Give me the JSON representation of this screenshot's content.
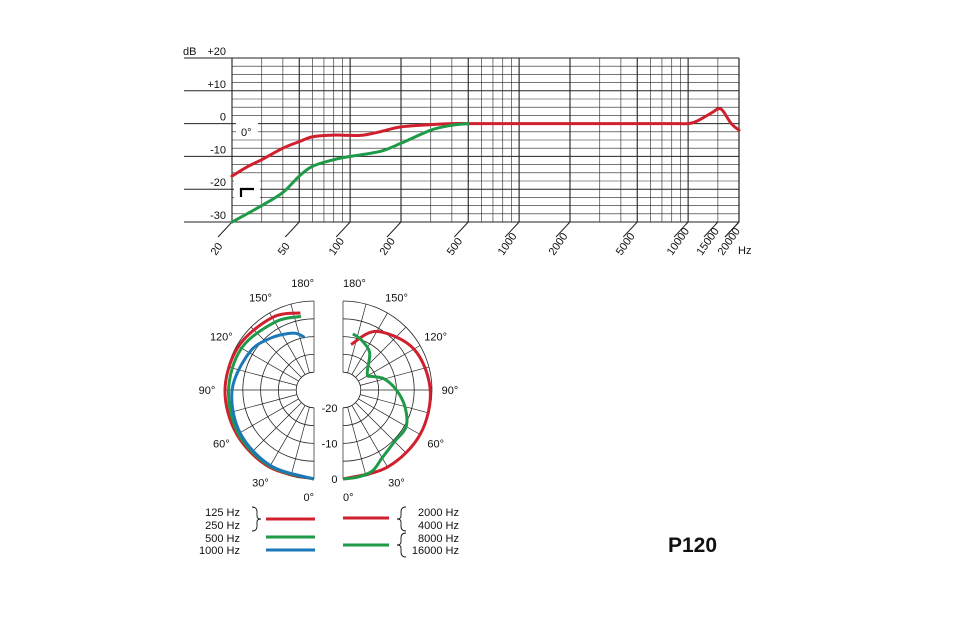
{
  "model": "P120",
  "colors": {
    "red": "#d0202e",
    "green": "#1f9a48",
    "blue": "#1d78b8",
    "grid": "#222222"
  },
  "chart_data": [
    {
      "type": "line",
      "x_scale": "log",
      "ylim": [
        -30,
        20
      ],
      "xlim": [
        20,
        20000
      ],
      "y_ticks": [
        {
          "value": 20,
          "label": "+20"
        },
        {
          "value": 10,
          "label": "+10"
        },
        {
          "value": 0,
          "label": "0"
        },
        {
          "value": -10,
          "label": "-10"
        },
        {
          "value": -20,
          "label": "-20"
        },
        {
          "value": -30,
          "label": "-30"
        }
      ],
      "y_unit": "dB",
      "x_ticks": [
        20,
        50,
        100,
        200,
        500,
        1000,
        2000,
        5000,
        10000,
        15000,
        20000
      ],
      "x_unit": "Hz",
      "annotations": [
        "0°"
      ],
      "series": [
        {
          "color": "red",
          "x": [
            20,
            25,
            30,
            40,
            50,
            60,
            80,
            100,
            120,
            150,
            200,
            300,
            400,
            500,
            700,
            1000,
            2000,
            5000,
            8000,
            10000,
            11000,
            12000,
            14000,
            15000,
            16000,
            18000,
            20000
          ],
          "y": [
            -16,
            -13,
            -11,
            -7.5,
            -5.5,
            -4,
            -3.5,
            -3.6,
            -3.5,
            -2.5,
            -1,
            -0.3,
            0,
            0,
            0,
            0,
            0,
            0,
            0,
            0,
            0.5,
            1.5,
            3.5,
            4.5,
            4,
            0,
            -2
          ]
        },
        {
          "color": "green",
          "x": [
            20,
            30,
            40,
            50,
            60,
            80,
            100,
            150,
            200,
            300,
            400,
            500
          ],
          "y": [
            -30,
            -25,
            -21,
            -16,
            -13,
            -11,
            -10,
            -8.5,
            -6,
            -2,
            -0.5,
            0
          ]
        }
      ]
    },
    {
      "type": "polar",
      "radial_ticks": [
        {
          "value": 0,
          "label": "0"
        },
        {
          "value": -10,
          "label": "-10"
        },
        {
          "value": -20,
          "label": "-20"
        }
      ],
      "rlim": [
        -25,
        0
      ],
      "angle_labels_left": [
        "180°",
        "150°",
        "120°",
        "90°",
        "60°",
        "30°",
        "0°"
      ],
      "angle_labels_right": [
        "180°",
        "150°",
        "120°",
        "90°",
        "60°",
        "30°",
        "0°"
      ],
      "left_series": [
        {
          "color": "red",
          "angles": [
            0,
            30,
            60,
            90,
            120,
            150,
            170
          ],
          "values": [
            0,
            0,
            0,
            0,
            -0.5,
            -1.5,
            -3
          ]
        },
        {
          "color": "green",
          "angles": [
            0,
            30,
            60,
            90,
            120,
            150,
            170
          ],
          "values": [
            0,
            -0.3,
            -0.5,
            -1,
            -1.5,
            -3,
            -4
          ]
        },
        {
          "color": "blue",
          "angles": [
            0,
            30,
            60,
            90,
            120,
            140,
            160,
            170
          ],
          "values": [
            0,
            -0.5,
            -1,
            -2,
            -4,
            -6,
            -8,
            -10
          ]
        }
      ],
      "right_series": [
        {
          "color": "red",
          "angles": [
            0,
            30,
            60,
            90,
            120,
            150,
            170
          ],
          "values": [
            0,
            0,
            0,
            -0.5,
            -2,
            -6,
            -12
          ]
        },
        {
          "color": "green",
          "angles": [
            0,
            10,
            20,
            30,
            45,
            60,
            75,
            90,
            105,
            115,
            120,
            130,
            145,
            160,
            170
          ],
          "values": [
            0,
            -0.2,
            -0.8,
            -3,
            -4.5,
            -4.5,
            -7,
            -10,
            -13,
            -16,
            -17,
            -16,
            -12,
            -10,
            -9
          ]
        }
      ],
      "legend_left": [
        {
          "labels": [
            "125 Hz",
            "250 Hz"
          ],
          "color": "red"
        },
        {
          "labels": [
            "500 Hz"
          ],
          "color": "green"
        },
        {
          "labels": [
            "1000 Hz"
          ],
          "color": "blue"
        }
      ],
      "legend_right": [
        {
          "labels": [
            "2000 Hz",
            "4000 Hz"
          ],
          "color": "red"
        },
        {
          "labels": [
            "8000 Hz",
            "16000 Hz"
          ],
          "color": "green"
        }
      ]
    }
  ]
}
